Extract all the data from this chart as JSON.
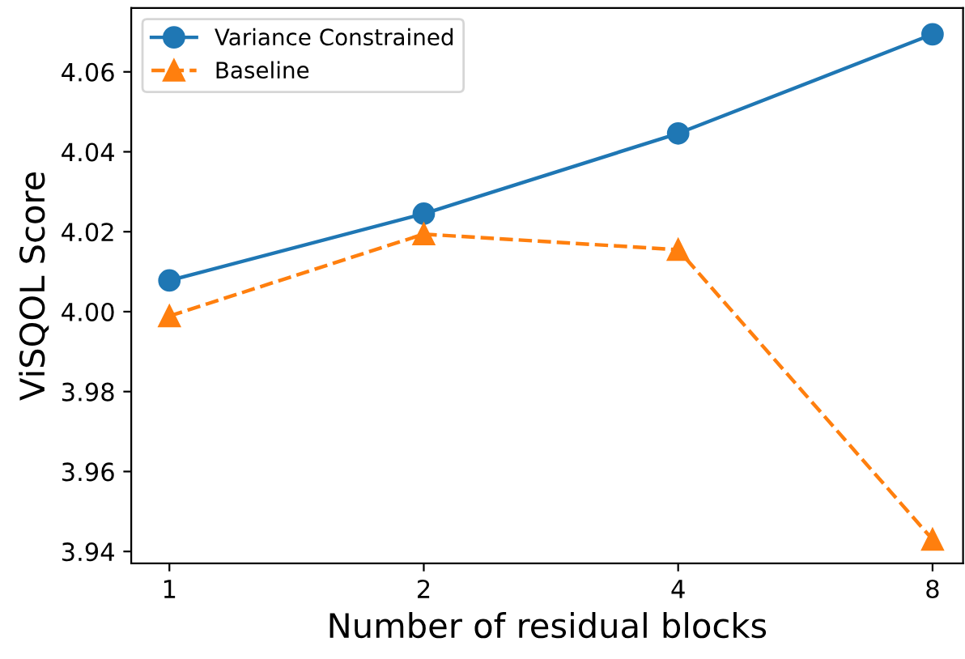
{
  "chart_data": {
    "type": "line",
    "xlabel": "Number of residual blocks",
    "ylabel": "ViSQOL Score",
    "categories": [
      "1",
      "2",
      "4",
      "8"
    ],
    "series": [
      {
        "name": "Variance Constrained",
        "color": "#1f77b4",
        "values": [
          4.0078,
          4.0245,
          4.0446,
          4.0694
        ],
        "marker": "circle",
        "line_style": "solid"
      },
      {
        "name": "Baseline",
        "color": "#ff7f0e",
        "values": [
          3.9989,
          4.0194,
          4.0155,
          3.943
        ],
        "marker": "triangle",
        "line_style": "dashed"
      }
    ],
    "ylim": [
      3.937,
      4.076
    ],
    "yticks": [
      3.94,
      3.96,
      3.98,
      {
        "value": 4.0,
        "label": "4.00"
      },
      4.02,
      4.04,
      4.06
    ],
    "grid": false,
    "legend": "top left"
  }
}
